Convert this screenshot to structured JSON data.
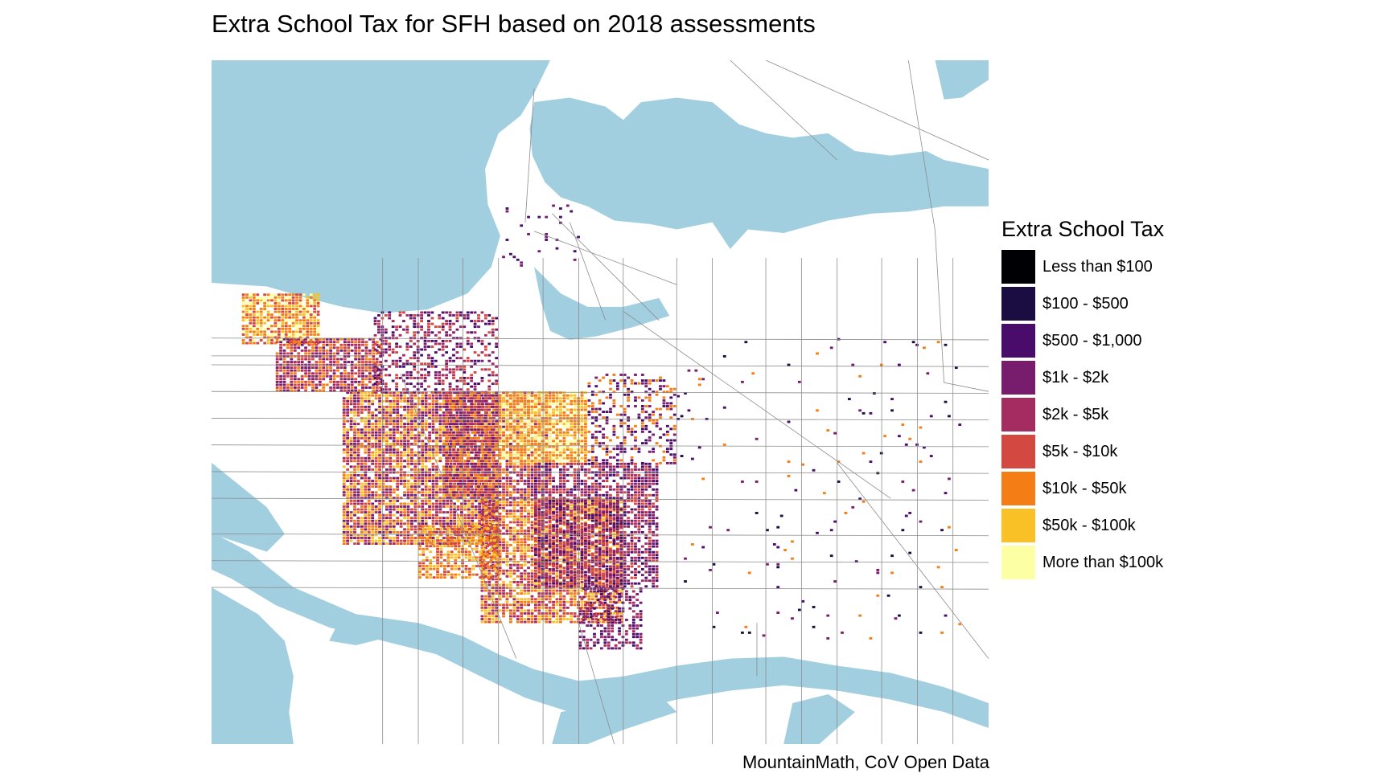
{
  "title": "Extra School Tax for SFH based on 2018 assessments",
  "caption": "MountainMath, CoV Open Data",
  "colors": {
    "water": "#a2cfe0",
    "road": "#8a8a8a"
  },
  "legend": {
    "title": "Extra School Tax",
    "items": [
      {
        "label": "Less than $100",
        "color": "#000004"
      },
      {
        "label": "$100 - $500",
        "color": "#1b0c41"
      },
      {
        "label": "$500 - $1,000",
        "color": "#4a0c6b"
      },
      {
        "label": "$1k - $2k",
        "color": "#781c6d"
      },
      {
        "label": "$2k - $5k",
        "color": "#a52c60"
      },
      {
        "label": "$5k - $10k",
        "color": "#d44842"
      },
      {
        "label": "$10k - $50k",
        "color": "#f57d15"
      },
      {
        "label": "$50k - $100k",
        "color": "#fac127"
      },
      {
        "label": "More than $100k",
        "color": "#fcffa4"
      }
    ]
  }
}
